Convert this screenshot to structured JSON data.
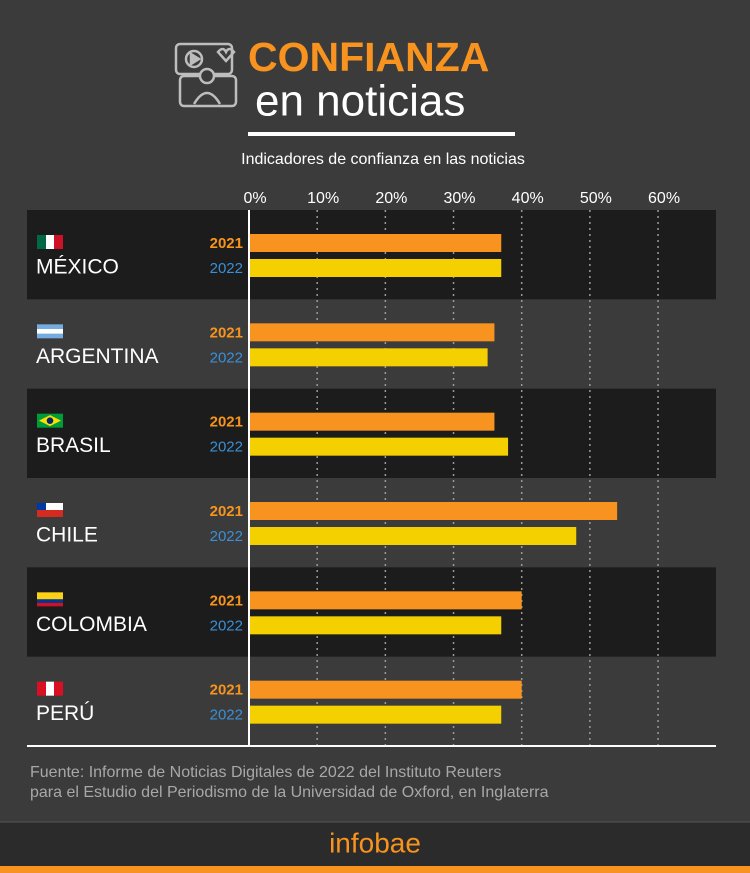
{
  "chart_data": {
    "type": "bar",
    "title": "CONFIANZA",
    "title_line2": "en noticias",
    "subtitle": "Indicadores de confianza en las noticias",
    "categories": [
      "MÉXICO",
      "ARGENTINA",
      "BRASIL",
      "CHILE",
      "COLOMBIA",
      "PERÚ"
    ],
    "series": [
      {
        "name": "2021",
        "color": "#f7931e",
        "label_color": "#f7941d",
        "values": [
          37,
          36,
          36,
          54,
          40,
          40
        ]
      },
      {
        "name": "2022",
        "color": "#f5d000",
        "label_color": "#3a8fd6",
        "values": [
          37,
          35,
          38,
          48,
          37,
          37
        ]
      }
    ],
    "xlim": [
      0,
      68.5
    ],
    "xticks": [
      {
        "value": 0,
        "label": "0%"
      },
      {
        "value": 10,
        "label": "10%"
      },
      {
        "value": 20,
        "label": "20%"
      },
      {
        "value": 30,
        "label": "30%"
      },
      {
        "value": 40,
        "label": "40%"
      },
      {
        "value": 50,
        "label": "50%"
      },
      {
        "value": 60,
        "label": "60%"
      }
    ],
    "grid": true,
    "source": [
      "Fuente: Informe de Noticias Digitales de 2022 del Instituto Reuters",
      "para el Estudio del Periodismo de la Universidad de Oxford, en Inglaterra"
    ],
    "brand": "infobae"
  }
}
